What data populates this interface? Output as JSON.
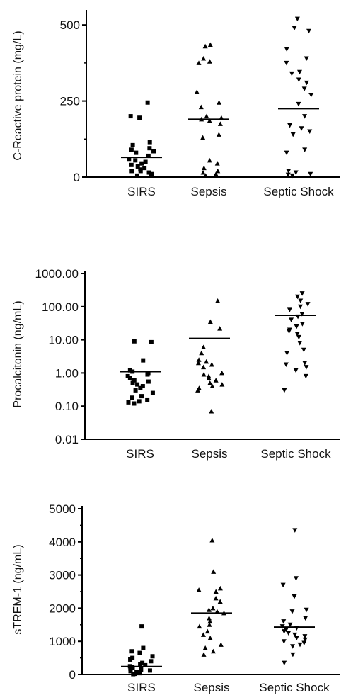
{
  "chart_data": [
    {
      "type": "scatter",
      "ylabel": "C-Reactive protein (mg/L)",
      "yscale": "linear",
      "ylim": [
        0,
        540
      ],
      "yticks": [
        0,
        250,
        500
      ],
      "ytick_labels": [
        "0",
        "250",
        "500"
      ],
      "categories": [
        "SIRS",
        "Sepsis",
        "Septic Shock"
      ],
      "series": [
        {
          "marker": "square",
          "values": [
            245,
            200,
            195,
            115,
            105,
            95,
            90,
            85,
            80,
            70,
            60,
            55,
            50,
            45,
            40,
            35,
            30,
            25,
            20,
            20,
            15,
            10,
            5
          ],
          "median": 65
        },
        {
          "marker": "triangle-up",
          "values": [
            435,
            430,
            390,
            380,
            375,
            280,
            245,
            230,
            200,
            195,
            190,
            185,
            175,
            140,
            130,
            55,
            45,
            30,
            20,
            15,
            10,
            5
          ],
          "median": 190
        },
        {
          "marker": "triangle-down",
          "values": [
            520,
            490,
            480,
            420,
            390,
            375,
            345,
            340,
            320,
            310,
            290,
            270,
            240,
            200,
            170,
            160,
            150,
            140,
            90,
            80,
            20,
            15,
            10,
            8,
            5
          ],
          "median": 225
        }
      ]
    },
    {
      "type": "scatter",
      "ylabel": "Procalcitonin (ng/mL)",
      "yscale": "log",
      "ylim": [
        0.01,
        1000
      ],
      "yticks": [
        0.01,
        0.1,
        1,
        10,
        100,
        1000
      ],
      "ytick_labels": [
        "0.01",
        "0.10",
        "1.00",
        "10.00",
        "100.00",
        "1000.00"
      ],
      "categories": [
        "SIRS",
        "Sepsis",
        "Septic Shock"
      ],
      "series": [
        {
          "marker": "square",
          "values": [
            9,
            8.5,
            2.4,
            1.2,
            1.1,
            1.0,
            0.9,
            0.8,
            0.7,
            0.6,
            0.55,
            0.5,
            0.45,
            0.4,
            0.35,
            0.3,
            0.25,
            0.2,
            0.18,
            0.15,
            0.14,
            0.13,
            0.12
          ],
          "median": 1.1
        },
        {
          "marker": "triangle-up",
          "values": [
            150,
            35,
            22,
            6,
            4,
            2.5,
            2.2,
            2.0,
            1.8,
            1.5,
            1.0,
            0.9,
            0.8,
            0.7,
            0.6,
            0.5,
            0.45,
            0.4,
            0.35,
            0.3,
            0.07
          ],
          "median": 11
        },
        {
          "marker": "triangle-down",
          "values": [
            250,
            200,
            150,
            120,
            100,
            80,
            60,
            50,
            40,
            30,
            25,
            20,
            18,
            15,
            12,
            8,
            5,
            4,
            2,
            1.8,
            1.5,
            1.2,
            0.8,
            0.3
          ],
          "median": 55
        }
      ]
    },
    {
      "type": "scatter",
      "ylabel": "sTREM-1 (ng/mL)",
      "yscale": "linear",
      "ylim": [
        0,
        5000
      ],
      "yticks": [
        0,
        1000,
        2000,
        3000,
        4000,
        5000
      ],
      "ytick_labels": [
        "0",
        "1000",
        "2000",
        "3000",
        "4000",
        "5000"
      ],
      "categories": [
        "SIRS",
        "Sepsis",
        "Septic Shock"
      ],
      "series": [
        {
          "marker": "square",
          "values": [
            1450,
            800,
            700,
            650,
            550,
            500,
            450,
            400,
            350,
            300,
            280,
            250,
            220,
            200,
            180,
            150,
            120,
            100,
            80,
            60,
            40,
            20,
            10
          ],
          "median": 240
        },
        {
          "marker": "triangle-up",
          "values": [
            4050,
            3100,
            2600,
            2550,
            2500,
            2300,
            2200,
            2000,
            1950,
            1900,
            1850,
            1700,
            1600,
            1500,
            1450,
            1300,
            1200,
            1100,
            900,
            800,
            700,
            600
          ],
          "median": 1850
        },
        {
          "marker": "triangle-down",
          "values": [
            4350,
            2900,
            2700,
            2350,
            1950,
            1900,
            1700,
            1600,
            1500,
            1450,
            1400,
            1350,
            1300,
            1250,
            1200,
            1150,
            1100,
            1050,
            1000,
            950,
            900,
            850,
            600,
            350
          ],
          "median": 1430
        }
      ]
    }
  ]
}
